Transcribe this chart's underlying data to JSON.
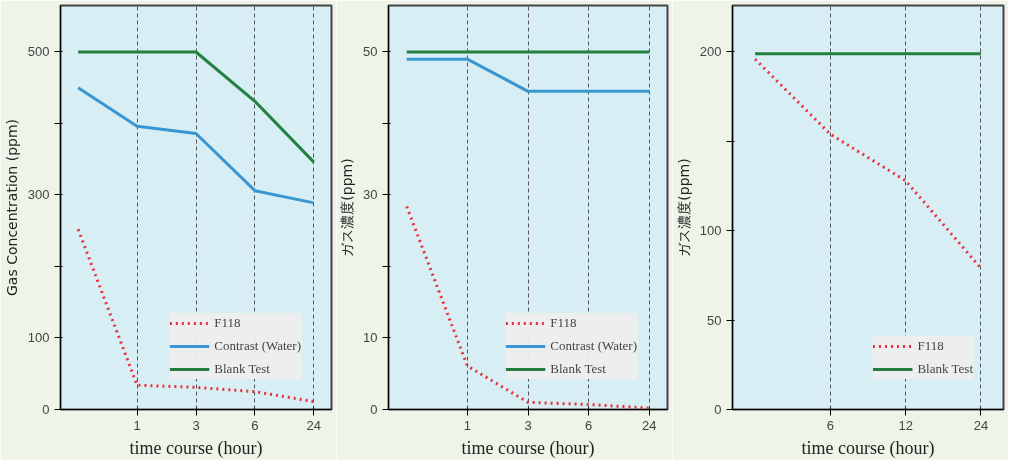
{
  "chart_data": [
    {
      "type": "line",
      "categories": [
        null,
        "1",
        "3",
        "6",
        "24"
      ],
      "xlabel": "time course (hour)",
      "ylabel": "Gas Concentration (ppm)",
      "ylim": [
        0,
        565
      ],
      "yticks": [
        0,
        100,
        {
          "value": 200,
          "label": null
        },
        300,
        {
          "value": 400,
          "label": null
        },
        500
      ],
      "grid": "x",
      "legend": "bottom right",
      "marker": "none",
      "series": [
        {
          "name": "F118",
          "color": "#e8303a",
          "line_style": "dotted",
          "values": [
            252,
            34,
            31,
            25,
            11
          ]
        },
        {
          "name": "Contrast (Water)",
          "color": "#3a96d0",
          "line_style": "solid",
          "values": [
            450,
            396,
            386,
            306,
            289
          ]
        },
        {
          "name": "Blank Test",
          "color": "#238040",
          "line_style": "solid",
          "values": [
            500,
            500,
            500,
            431,
            346
          ]
        }
      ]
    },
    {
      "type": "line",
      "categories": [
        null,
        "1",
        "3",
        "6",
        "24"
      ],
      "xlabel": "time course (hour)",
      "ylabel": "ガス濃度(ppm)",
      "ylim": [
        0,
        56.5
      ],
      "yticks": [
        0,
        10,
        {
          "value": 20,
          "label": null
        },
        30,
        {
          "value": 40,
          "label": null
        },
        50
      ],
      "grid": "x",
      "legend": "bottom right",
      "marker": "none",
      "series": [
        {
          "name": "F118",
          "color": "#e8303a",
          "line_style": "dotted",
          "values": [
            28.4,
            6.1,
            1,
            0.7,
            0.2
          ]
        },
        {
          "name": "Contrast (Water)",
          "color": "#3a96d0",
          "line_style": "solid",
          "values": [
            49,
            49,
            44.5,
            44.5,
            44.5
          ]
        },
        {
          "name": "Blank Test",
          "color": "#238040",
          "line_style": "solid",
          "values": [
            50,
            50,
            50,
            50,
            50
          ]
        }
      ]
    },
    {
      "type": "line",
      "categories": [
        null,
        "6",
        "12",
        "24"
      ],
      "xlabel": "time course (hour)",
      "ylabel": "ガス濃度(ppm)",
      "ylim": [
        0,
        226
      ],
      "yticks": [
        0,
        50,
        100,
        {
          "value": 150,
          "label": null
        },
        200
      ],
      "grid": "x",
      "legend": "bottom right",
      "marker": "none",
      "series": [
        {
          "name": "F118",
          "color": "#e8303a",
          "line_style": "dotted",
          "values": [
            196,
            154,
            128,
            79
          ]
        },
        {
          "name": "Blank Test",
          "color": "#238040",
          "line_style": "solid",
          "values": [
            199,
            199,
            199,
            199
          ]
        }
      ]
    }
  ]
}
